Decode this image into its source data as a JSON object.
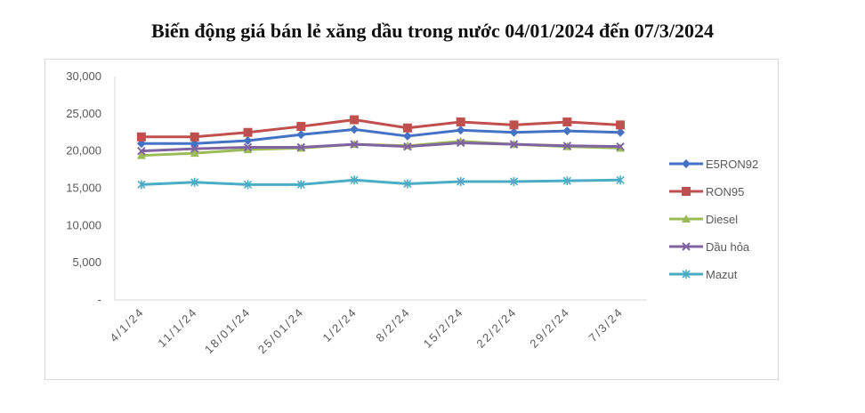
{
  "chart_data": {
    "type": "line",
    "title": "Biến động giá bán lẻ xăng dầu trong nước 04/01/2024 đến 07/3/2024",
    "categories": [
      "4/1/24",
      "11/1/24",
      "18/01/24",
      "25/01/24",
      "1/2/24",
      "8/2/24",
      "15/2/24",
      "22/2/24",
      "29/2/24",
      "7/3/24"
    ],
    "y_ticks": [
      "30,000",
      "25,000",
      "20,000",
      "15,000",
      "10,000",
      "5,000",
      "-"
    ],
    "ylim": [
      0,
      30000
    ],
    "grid": false,
    "legend_position": "right",
    "series": [
      {
        "name": "E5RON92",
        "color": "#4472c4",
        "marker": "diamond",
        "values": [
          21000,
          21000,
          21400,
          22200,
          22900,
          22000,
          22800,
          22500,
          22700,
          22500
        ]
      },
      {
        "name": "RON95",
        "color": "#c0504d",
        "marker": "square",
        "values": [
          21900,
          21900,
          22500,
          23300,
          24200,
          23100,
          23900,
          23500,
          23900,
          23500
        ]
      },
      {
        "name": "Diesel",
        "color": "#9bbb59",
        "marker": "triangle",
        "values": [
          19400,
          19700,
          20200,
          20400,
          20900,
          20700,
          21300,
          20900,
          20600,
          20400
        ]
      },
      {
        "name": "Dầu hỏa",
        "color": "#8064a2",
        "marker": "x",
        "values": [
          20000,
          20300,
          20500,
          20500,
          20900,
          20600,
          21100,
          20900,
          20700,
          20600
        ]
      },
      {
        "name": "Mazut",
        "color": "#4bacc6",
        "marker": "star",
        "values": [
          15500,
          15800,
          15500,
          15500,
          16100,
          15600,
          15900,
          15900,
          16000,
          16100
        ]
      }
    ]
  }
}
